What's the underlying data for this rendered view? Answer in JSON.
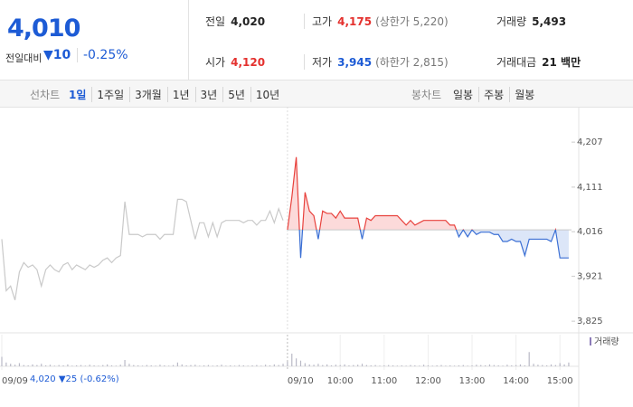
{
  "header": {
    "price": "4,010",
    "change_label": "전일대비",
    "change": "▼10",
    "change_pct": "-0.25%"
  },
  "stats": [
    {
      "label": "전일",
      "value": "4,020"
    },
    {
      "label": "고가",
      "value": "4,175",
      "note": "(상한가 5,220)",
      "color": "#e4312e"
    },
    {
      "label": "거래량",
      "value": "5,493"
    },
    {
      "label": "시가",
      "value": "4,120",
      "color": "#e4312e"
    },
    {
      "label": "저가",
      "value": "3,945",
      "note": "(하한가 2,815)",
      "color": "#1d5bd5"
    },
    {
      "label": "거래대금",
      "value": "21 백만"
    }
  ],
  "line_tabs": {
    "label": "선차트",
    "items": [
      "1일",
      "1주일",
      "3개월",
      "1년",
      "3년",
      "5년",
      "10년"
    ],
    "active": 0
  },
  "candle_tabs": {
    "label": "봉차트",
    "items": [
      "일봉",
      "주봉",
      "월봉"
    ]
  },
  "footer": {
    "price": "4,020",
    "change": "▼25",
    "change_pct": "(-0.62%)"
  },
  "chart_data": {
    "type": "line",
    "categories": [
      "09/09",
      null,
      null,
      null,
      null,
      null,
      null,
      null,
      null,
      null,
      null,
      null,
      null,
      null,
      null,
      null,
      null,
      null,
      null,
      null,
      null,
      null,
      null,
      null,
      null,
      null,
      null,
      null,
      null,
      null,
      null,
      null,
      null,
      null,
      null,
      null,
      null,
      null,
      null,
      null,
      null,
      null,
      null,
      null,
      null,
      null,
      null,
      null,
      null,
      null,
      null,
      null,
      null,
      null,
      null,
      null,
      null,
      null,
      null,
      null,
      null,
      null,
      null,
      null,
      null,
      "09/10",
      null,
      null,
      null,
      null,
      null,
      null,
      null,
      null,
      null,
      null,
      null,
      "10:00",
      null,
      null,
      null,
      null,
      null,
      null,
      null,
      null,
      null,
      "11:00",
      null,
      null,
      null,
      null,
      null,
      null,
      null,
      null,
      null,
      "12:00",
      null,
      null,
      null,
      null,
      null,
      null,
      null,
      null,
      null,
      "13:00",
      null,
      null,
      null,
      null,
      null,
      null,
      null,
      null,
      null,
      "14:00",
      null,
      null,
      null,
      null,
      null,
      null,
      null,
      null,
      null,
      "15:00",
      null,
      null
    ],
    "series": [
      {
        "color": "#c9c9c9",
        "values": [
          4000,
          3890,
          3900,
          3870,
          3930,
          3950,
          3940,
          3945,
          3935,
          3900,
          3935,
          3945,
          3935,
          3930,
          3945,
          3950,
          3935,
          3945,
          3940,
          3935,
          3945,
          3940,
          3945,
          3955,
          3960,
          3950,
          3960,
          3965,
          4080,
          4010,
          4010,
          4010,
          4005,
          4010,
          4010,
          4010,
          4000,
          4010,
          4010,
          4010,
          4085,
          4085,
          4080,
          4040,
          4000,
          4035,
          4035,
          4005,
          4035,
          4005,
          4035,
          4040,
          4040,
          4040,
          4040,
          4035,
          4040,
          4040,
          4030,
          4040,
          4040,
          4060,
          4035,
          4065,
          4040,
          null,
          null,
          null,
          null,
          null,
          null,
          null,
          null,
          null,
          null,
          null,
          null,
          null,
          null,
          null,
          null,
          null,
          null,
          null,
          null,
          null,
          null,
          null,
          null,
          null,
          null,
          null,
          null,
          null,
          null,
          null,
          null,
          null,
          null,
          null,
          null,
          null,
          null,
          null,
          null,
          null,
          null,
          null,
          null,
          null,
          null,
          null,
          null,
          null,
          null,
          null,
          null,
          null,
          null,
          null,
          null,
          null,
          null,
          null,
          null,
          null,
          null,
          null,
          null,
          null
        ]
      },
      {
        "color": "#e8413c",
        "down_color": "#3b6fd4",
        "fill": "#fbd3d3",
        "down_fill": "#d6e2f7",
        "values": [
          null,
          null,
          null,
          null,
          null,
          null,
          null,
          null,
          null,
          null,
          null,
          null,
          null,
          null,
          null,
          null,
          null,
          null,
          null,
          null,
          null,
          null,
          null,
          null,
          null,
          null,
          null,
          null,
          null,
          null,
          null,
          null,
          null,
          null,
          null,
          null,
          null,
          null,
          null,
          null,
          null,
          null,
          null,
          null,
          null,
          null,
          null,
          null,
          null,
          null,
          null,
          null,
          null,
          null,
          null,
          null,
          null,
          null,
          null,
          null,
          null,
          null,
          null,
          null,
          null,
          4020,
          4090,
          4175,
          3960,
          4100,
          4060,
          4050,
          4000,
          4060,
          4055,
          4055,
          4045,
          4060,
          4045,
          4045,
          4045,
          4045,
          4000,
          4045,
          4040,
          4050,
          4050,
          4050,
          4050,
          4050,
          4050,
          4040,
          4030,
          4040,
          4030,
          4035,
          4040,
          4040,
          4040,
          4040,
          4040,
          4040,
          4030,
          4030,
          4005,
          4020,
          4005,
          4020,
          4010,
          4015,
          4015,
          4015,
          4010,
          4010,
          3995,
          3995,
          4000,
          3995,
          3995,
          3965,
          4000,
          4000,
          4000,
          4000,
          4000,
          3995,
          4020,
          3960,
          3960,
          3960
        ]
      }
    ],
    "baseline": 4020,
    "ylim": [
      3806,
      4269
    ],
    "yticks": [
      {
        "value": 4207,
        "label": "4,207"
      },
      {
        "value": 4111,
        "label": "4,111"
      },
      {
        "value": 4016,
        "label": "4,016"
      },
      {
        "value": 3921,
        "label": "3,921"
      },
      {
        "value": 3825,
        "label": "3,825"
      }
    ],
    "volume": {
      "name": "거래량",
      "color": "#b9b9c6",
      "legend_color": "#8c7bb8",
      "ylim": [
        0,
        100
      ],
      "values": [
        30,
        12,
        8,
        5,
        10,
        4,
        3,
        6,
        4,
        8,
        3,
        5,
        2,
        4,
        3,
        6,
        2,
        3,
        4,
        2,
        5,
        3,
        2,
        4,
        6,
        3,
        2,
        5,
        20,
        8,
        4,
        3,
        2,
        4,
        3,
        2,
        5,
        3,
        2,
        4,
        12,
        6,
        3,
        4,
        5,
        2,
        3,
        4,
        2,
        3,
        5,
        2,
        3,
        2,
        4,
        3,
        2,
        3,
        4,
        2,
        5,
        3,
        6,
        4,
        8,
        15,
        40,
        25,
        18,
        10,
        6,
        5,
        8,
        4,
        6,
        3,
        5,
        4,
        6,
        3,
        4,
        5,
        8,
        4,
        3,
        4,
        2,
        3,
        4,
        3,
        2,
        3,
        2,
        4,
        3,
        2,
        5,
        3,
        2,
        3,
        4,
        2,
        3,
        2,
        3,
        4,
        2,
        3,
        5,
        4,
        3,
        6,
        4,
        3,
        2,
        5,
        3,
        4,
        6,
        3,
        45,
        8,
        5,
        4,
        3,
        6,
        4,
        10,
        6,
        12
      ]
    }
  }
}
